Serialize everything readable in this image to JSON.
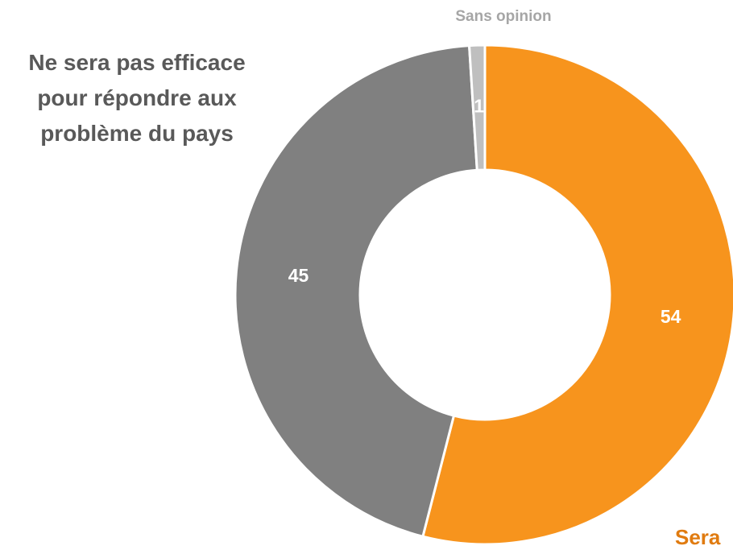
{
  "chart_data": {
    "type": "donut",
    "categories": [
      "Sera",
      "Ne sera pas efficace pour répondre aux problème du pays",
      "Sans opinion"
    ],
    "values": [
      54,
      45,
      1
    ],
    "colors": [
      "#F7941D",
      "#808080",
      "#BFBFBF"
    ]
  }
}
